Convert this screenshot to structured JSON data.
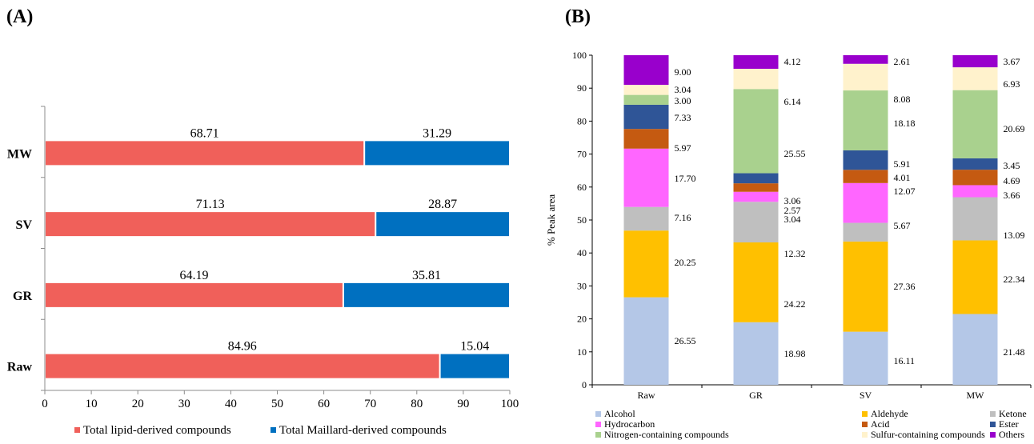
{
  "panels": {
    "a_label": "(A)",
    "b_label": "(B)"
  },
  "chart_data": [
    {
      "type": "bar",
      "orientation": "horizontal",
      "stacked": true,
      "title": "",
      "categories": [
        "MW",
        "SV",
        "GR",
        "Raw"
      ],
      "series": [
        {
          "name": "Total lipid-derived compounds",
          "color": "#f0605a",
          "values": [
            68.71,
            71.13,
            64.19,
            84.96
          ]
        },
        {
          "name": "Total Maillard-derived compounds",
          "color": "#0070c0",
          "values": [
            31.29,
            28.87,
            35.81,
            15.04
          ]
        }
      ],
      "xlim": [
        0,
        100
      ],
      "xticks": [
        "0",
        "10",
        "20",
        "30",
        "40",
        "50",
        "60",
        "70",
        "80",
        "90",
        "100"
      ],
      "xlabel": "",
      "ylabel": "",
      "grid": false,
      "legend_position": "bottom"
    },
    {
      "type": "bar",
      "stacked": true,
      "title": "",
      "categories": [
        "Raw",
        "GR",
        "SV",
        "MW"
      ],
      "series": [
        {
          "name": "Alcohol",
          "color": "#b4c7e7",
          "values": [
            26.55,
            18.98,
            16.11,
            21.48
          ]
        },
        {
          "name": "Aldehyde",
          "color": "#ffc000",
          "values": [
            20.25,
            24.22,
            27.36,
            22.34
          ]
        },
        {
          "name": "Ketone",
          "color": "#bfbfbf",
          "values": [
            7.16,
            12.32,
            5.67,
            13.09
          ]
        },
        {
          "name": "Hydrocarbon",
          "color": "#ff66ff",
          "values": [
            17.7,
            3.04,
            12.07,
            3.66
          ]
        },
        {
          "name": "Acid",
          "color": "#c55a11",
          "values": [
            5.97,
            2.57,
            4.01,
            4.69
          ]
        },
        {
          "name": "Ester",
          "color": "#2f5597",
          "values": [
            7.33,
            3.06,
            5.91,
            3.45
          ]
        },
        {
          "name": "Nitrogen-containing compounds",
          "color": "#a9d18e",
          "values": [
            3.0,
            25.55,
            18.18,
            20.69
          ]
        },
        {
          "name": "Sulfur-containing compounds",
          "color": "#fff2cc",
          "values": [
            3.04,
            6.14,
            8.08,
            6.93
          ]
        },
        {
          "name": "Others",
          "color": "#9900cc",
          "values": [
            9.0,
            4.12,
            2.61,
            3.67
          ]
        }
      ],
      "value_labels": [
        [
          "26.55",
          "20.25",
          "7.16",
          "17.70",
          "5.97",
          "7.33",
          "3.00",
          "3.04",
          "9.00"
        ],
        [
          "18.98",
          "24.22",
          "12.32",
          "3.04",
          "2.57",
          "3.06",
          "25.55",
          "6.14",
          "4.12"
        ],
        [
          "16.11",
          "27.36",
          "5.67",
          "12.07",
          "4.01",
          "5.91",
          "18.18",
          "8.08",
          "2.61"
        ],
        [
          "21.48",
          "22.34",
          "13.09",
          "3.66",
          "4.69",
          "3.45",
          "20.69",
          "6.93",
          "3.67"
        ]
      ],
      "ylim": [
        0,
        100
      ],
      "yticks": [
        "0",
        "10",
        "20",
        "30",
        "40",
        "50",
        "60",
        "70",
        "80",
        "90",
        "100"
      ],
      "xlabel": "",
      "ylabel": "% Peak area",
      "grid": false,
      "legend_position": "bottom"
    }
  ]
}
